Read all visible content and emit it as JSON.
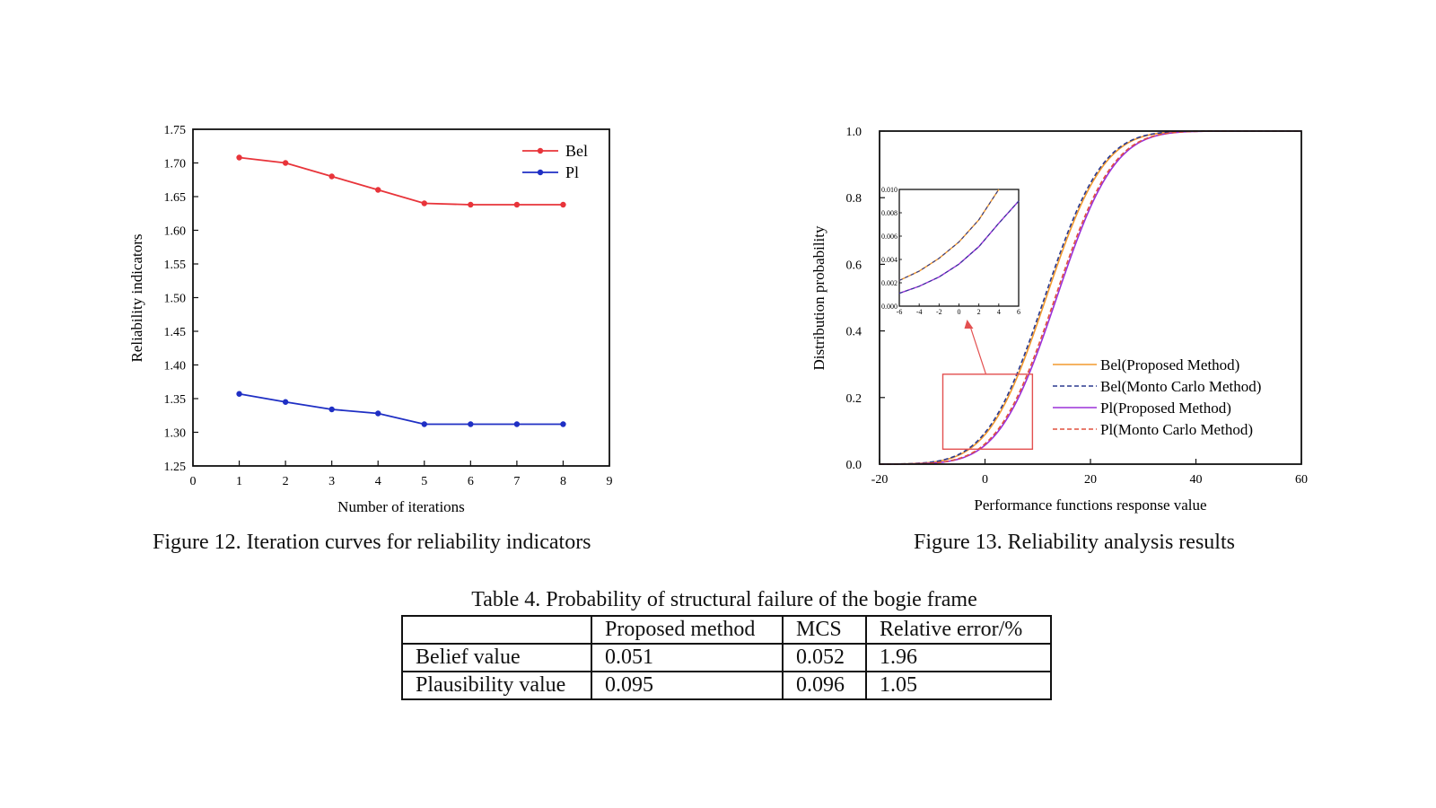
{
  "chart_data": [
    {
      "type": "line",
      "xlabel": "Number of iterations",
      "ylabel": "Reliability indicators",
      "xlim": [
        0,
        9
      ],
      "ylim": [
        1.25,
        1.75
      ],
      "xticks": [
        "0",
        "1",
        "2",
        "3",
        "4",
        "5",
        "6",
        "7",
        "8",
        "9"
      ],
      "yticks": [
        "1.25",
        "1.30",
        "1.35",
        "1.40",
        "1.45",
        "1.50",
        "1.55",
        "1.60",
        "1.65",
        "1.70",
        "1.75"
      ],
      "x": [
        1,
        2,
        3,
        4,
        5,
        6,
        7,
        8
      ],
      "legend_position": "top-right",
      "series": [
        {
          "name": "Bel",
          "color": "#e8343a",
          "values": [
            1.708,
            1.7,
            1.68,
            1.66,
            1.64,
            1.638,
            1.638,
            1.638
          ]
        },
        {
          "name": "Pl",
          "color": "#1f2fc4",
          "values": [
            1.357,
            1.345,
            1.334,
            1.328,
            1.312,
            1.312,
            1.312,
            1.312
          ]
        }
      ]
    },
    {
      "type": "line",
      "xlabel": "Performance functions response value",
      "ylabel": "Distribution probability",
      "xlim": [
        -20,
        60
      ],
      "ylim": [
        0.0,
        1.0
      ],
      "xticks": [
        "-20",
        "0",
        "20",
        "40",
        "60"
      ],
      "yticks": [
        "0.0",
        "0.2",
        "0.4",
        "0.6",
        "0.8",
        "1.0"
      ],
      "legend_position": "center-right",
      "series": [
        {
          "name": "Bel(Proposed Method)",
          "color": "#f29a2e",
          "style": "solid",
          "mu": 11.6,
          "sigma": 8.6
        },
        {
          "name": "Bel(Monto Carlo Method)",
          "color": "#2b3a8f",
          "style": "dashed",
          "mu": 11.3,
          "sigma": 8.6
        },
        {
          "name": "Pl(Proposed Method)",
          "color": "#9b30d9",
          "style": "solid",
          "mu": 13.6,
          "sigma": 8.6
        },
        {
          "name": "Pl(Monto Carlo Method)",
          "color": "#e0503e",
          "style": "dashed",
          "mu": 13.3,
          "sigma": 8.6
        }
      ],
      "inset": {
        "xlim": [
          -6,
          6
        ],
        "ylim": [
          0.0,
          0.01
        ],
        "xticks": [
          "-6",
          "-4",
          "-2",
          "0",
          "2",
          "4",
          "6"
        ],
        "yticks": [
          "0.000",
          "0.002",
          "0.004",
          "0.006",
          "0.008",
          "0.010"
        ],
        "series": [
          {
            "name": "Bel",
            "solid_color": "#f29a2e",
            "dash_color": "#2b3a8f",
            "x": [
              -6,
              -4,
              -2,
              0,
              2,
              4
            ],
            "values": [
              0.0022,
              0.003,
              0.0041,
              0.0055,
              0.0074,
              0.01
            ]
          },
          {
            "name": "Pl",
            "solid_color": "#9b30d9",
            "dash_color": "#2b3a8f",
            "x": [
              -6,
              -4,
              -2,
              0,
              2,
              4,
              6
            ],
            "values": [
              0.0011,
              0.0017,
              0.0025,
              0.0036,
              0.0051,
              0.0071,
              0.009
            ]
          }
        ]
      },
      "zoom_box": {
        "x_range": [
          -8,
          9
        ],
        "y_range": [
          0.045,
          0.27
        ],
        "color": "#e35050"
      }
    }
  ],
  "captions": {
    "fig12": "Figure 12. Iteration curves for reliability indicators",
    "fig13": "Figure 13. Reliability analysis results"
  },
  "table": {
    "title": "Table 4. Probability of structural failure of the bogie frame",
    "headers": [
      "",
      "Proposed method",
      "MCS",
      "Relative error/%"
    ],
    "rows": [
      [
        "Belief value",
        "0.051",
        "0.052",
        "1.96"
      ],
      [
        "Plausibility value",
        "0.095",
        "0.096",
        "1.05"
      ]
    ]
  }
}
